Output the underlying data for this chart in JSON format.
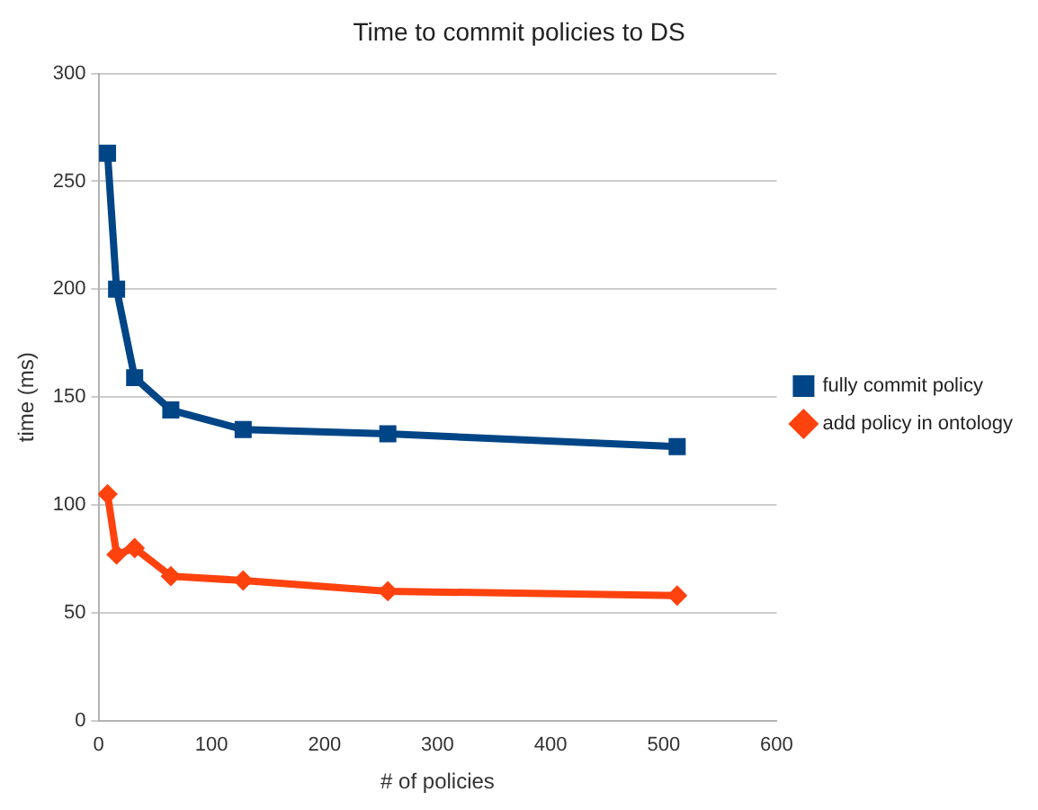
{
  "chart_data": {
    "type": "line",
    "title": "Time to commit policies to DS",
    "xlabel": "# of policies",
    "ylabel": "time (ms)",
    "x": [
      8,
      16,
      32,
      64,
      128,
      256,
      512
    ],
    "series": [
      {
        "name": "fully commit policy",
        "color": "#004586",
        "marker": "square",
        "values": [
          263,
          200,
          159,
          144,
          135,
          133,
          127
        ]
      },
      {
        "name": "add policy in ontology",
        "color": "#ff420e",
        "marker": "diamond",
        "values": [
          105,
          77,
          80,
          67,
          65,
          60,
          58
        ]
      }
    ],
    "xlim": [
      0,
      600
    ],
    "xticks": [
      0,
      100,
      200,
      300,
      400,
      500,
      600
    ],
    "ylim": [
      0,
      300
    ],
    "yticks": [
      0,
      50,
      100,
      150,
      200,
      250,
      300
    ],
    "grid": "y",
    "legend": "right",
    "line_style": "solid"
  }
}
